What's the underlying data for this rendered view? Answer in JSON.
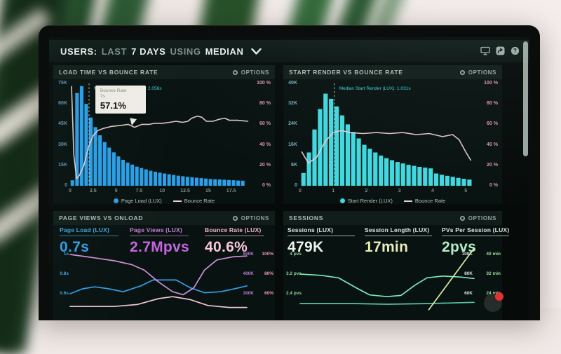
{
  "topbar": {
    "users": "USERS:",
    "last": "LAST",
    "days": "7 DAYS",
    "using": "USING",
    "median": "MEDIAN",
    "icons": [
      "display-icon",
      "share-icon",
      "help-icon"
    ]
  },
  "ui": {
    "options_label": "OPTIONS"
  },
  "colors": {
    "bar_blue": "#2b9fe8",
    "bar_cyan": "#41d8df",
    "bounce_line": "#e9d0d3",
    "median_label": "#41d6dd",
    "metric_purple": "#c467e0",
    "metric_pink": "#f8c6d8",
    "green_line": "#7fe9b9",
    "badge_red": "#e23333"
  },
  "chart_data": [
    {
      "type": "bar",
      "title": "LOAD TIME VS BOUNCE RATE",
      "x": {
        "min": 0,
        "max": 19.5,
        "ticks": [
          0,
          2.5,
          5,
          7.5,
          10,
          12.5,
          15,
          17.5
        ]
      },
      "y_left": {
        "min": 0,
        "max": 75000,
        "tick_labels": [
          "75K",
          "60K",
          "45K",
          "30K",
          "15K",
          "0"
        ],
        "color": "#6494b6"
      },
      "y_right": {
        "min": 0,
        "max": 100,
        "tick_labels": [
          "100 %",
          "80 %",
          "60 %",
          "40 %",
          "20 %",
          "0 %"
        ],
        "color": "#dc92ad"
      },
      "bars": {
        "name": "Page Load (LUX)",
        "color": "#2b9fe8",
        "start": 0.25,
        "step": 0.5,
        "values_k": [
          4,
          68,
          73,
          60,
          50,
          43,
          37,
          32,
          28,
          24.5,
          21.5,
          19,
          17,
          15.5,
          14,
          13,
          12,
          11,
          10.3,
          9.6,
          9,
          8.4,
          7.9,
          7.4,
          7,
          6.6,
          6.2,
          5.9,
          5.6,
          5.3,
          5,
          4.8,
          4.6,
          4.4,
          4.2,
          4,
          3.8,
          3.7
        ]
      },
      "line": {
        "name": "Bounce Rate",
        "color": "#e9d0d3",
        "points_pct": [
          [
            0.15,
            97
          ],
          [
            0.4,
            30
          ],
          [
            0.7,
            7
          ],
          [
            1,
            10
          ],
          [
            1.5,
            20
          ],
          [
            2,
            38
          ],
          [
            2.5,
            49
          ],
          [
            3,
            54
          ],
          [
            3.6,
            56
          ],
          [
            4.5,
            58
          ],
          [
            5.5,
            59
          ],
          [
            6.3,
            60
          ],
          [
            7,
            57.1
          ],
          [
            7.8,
            60
          ],
          [
            8.6,
            60
          ],
          [
            9.2,
            61
          ],
          [
            10,
            61
          ],
          [
            10.8,
            62
          ],
          [
            11.5,
            63
          ],
          [
            12.2,
            62
          ],
          [
            12.8,
            63
          ],
          [
            13.2,
            66
          ],
          [
            13.8,
            68
          ],
          [
            14.3,
            67
          ],
          [
            14.8,
            63
          ],
          [
            15.5,
            63
          ],
          [
            16.2,
            65
          ],
          [
            16.8,
            66
          ],
          [
            17.3,
            64
          ],
          [
            18.2,
            64
          ],
          [
            19.3,
            63
          ]
        ]
      },
      "median": {
        "x": 2.056,
        "label": "Median Page Load (LUX): 2.056s"
      },
      "tooltip": {
        "x": 7,
        "title": "Bounce Rate",
        "subtitle": "7s",
        "value": "57.1%"
      }
    },
    {
      "type": "bar",
      "title": "START RENDER VS BOUNCE RATE",
      "x": {
        "min": 0,
        "max": 5.25,
        "ticks": [
          0,
          1,
          2,
          3,
          4,
          5
        ]
      },
      "y_left": {
        "min": 0,
        "max": 40000,
        "tick_labels": [
          "40K",
          "32K",
          "24K",
          "16K",
          "8K",
          "0"
        ],
        "color": "#79aebc"
      },
      "y_right": {
        "min": 0,
        "max": 100,
        "tick_labels": [
          "100 %",
          "80 %",
          "60 %",
          "40 %",
          "20 %",
          "0 %"
        ],
        "color": "#dc92ad"
      },
      "bars": {
        "name": "Start Render (LUX)",
        "color": "#41d8df",
        "start": 0.1,
        "step": 0.167,
        "values_k": [
          5,
          13,
          22,
          30,
          36,
          34,
          31,
          27.5,
          24,
          21,
          18.5,
          16,
          14.5,
          13,
          11.8,
          10.8,
          10,
          9.3,
          8.7,
          8.2,
          7.8,
          7.4,
          7.1,
          6.8,
          4.8,
          4.3,
          3.9,
          3.5,
          3.1,
          2.7,
          2.4
        ]
      },
      "line": {
        "name": "Bounce Rate",
        "color": "#e9d0d3",
        "points_pct": [
          [
            0.05,
            33
          ],
          [
            0.25,
            22
          ],
          [
            0.5,
            28
          ],
          [
            0.75,
            43
          ],
          [
            1,
            52
          ],
          [
            1.25,
            54
          ],
          [
            1.5,
            52
          ],
          [
            1.9,
            51
          ],
          [
            2.3,
            52
          ],
          [
            2.7,
            51
          ],
          [
            3.1,
            52
          ],
          [
            3.5,
            50
          ],
          [
            3.9,
            51
          ],
          [
            4.3,
            48
          ],
          [
            4.6,
            50
          ],
          [
            4.8,
            45
          ],
          [
            5,
            33
          ],
          [
            5.15,
            25
          ]
        ]
      },
      "median": {
        "x": 1.031,
        "label": "Median Start Render (LUX): 1.031s"
      }
    },
    {
      "type": "line",
      "title": "PAGE VIEWS VS ONLOAD",
      "metrics": [
        {
          "label": "Page Load (LUX)",
          "value": "0.7s",
          "label_color": "#3fa6de",
          "color": "#2f9fe8"
        },
        {
          "label": "Page Views (LUX)",
          "value": "2.7Mpvs",
          "label_color": "#c77fd6",
          "color": "#c467e0"
        },
        {
          "label": "Bounce Rate (LUX)",
          "value": "40.6%",
          "label_color": "#f4b8cc",
          "color": "#f8c6d8"
        }
      ],
      "y_left": {
        "tick_labels": [
          "1s",
          "0.8s",
          "0.6s"
        ],
        "color": "#3fa6de"
      },
      "y_right": [
        {
          "labels": [
            "500K",
            "400K",
            "300K"
          ],
          "color": "#b87fd0"
        },
        {
          "labels": [
            "100%",
            "80%",
            "60%"
          ],
          "color": "#f098b8"
        }
      ],
      "series": [
        {
          "name": "Page Load (LUX)",
          "color": "#2f9fe8",
          "y_top_val": 1,
          "y_row_step": 0.2,
          "points": [
            [
              0,
              0.6
            ],
            [
              0.07,
              0.65
            ],
            [
              0.14,
              0.67
            ],
            [
              0.22,
              0.65
            ],
            [
              0.3,
              0.62
            ],
            [
              0.4,
              0.68
            ],
            [
              0.47,
              0.74
            ],
            [
              0.6,
              0.74
            ],
            [
              0.68,
              0.66
            ],
            [
              0.76,
              0.61
            ],
            [
              0.85,
              0.62
            ],
            [
              0.93,
              0.65
            ],
            [
              1,
              0.68
            ]
          ]
        },
        {
          "name": "Page Views (LUX)",
          "color": "#cf8fd8",
          "y_top_val": 500,
          "y_row_step": 100,
          "points": [
            [
              0,
              500
            ],
            [
              0.12,
              485
            ],
            [
              0.25,
              468
            ],
            [
              0.35,
              448
            ],
            [
              0.42,
              420
            ],
            [
              0.5,
              360
            ],
            [
              0.58,
              310
            ],
            [
              0.64,
              295
            ],
            [
              0.7,
              330
            ],
            [
              0.76,
              420
            ],
            [
              0.83,
              472
            ],
            [
              0.92,
              488
            ],
            [
              1,
              492
            ]
          ]
        },
        {
          "name": "Bounce Rate (LUX)",
          "color": "#f0c4ce",
          "y_top_val": 100,
          "y_row_step": 20,
          "points": [
            [
              0,
              47
            ],
            [
              0.25,
              47
            ],
            [
              0.38,
              49
            ],
            [
              0.5,
              55
            ],
            [
              0.58,
              57
            ],
            [
              0.68,
              54
            ],
            [
              0.78,
              48
            ],
            [
              0.9,
              46
            ],
            [
              1,
              46
            ]
          ]
        }
      ]
    },
    {
      "type": "line",
      "title": "SESSIONS",
      "metrics": [
        {
          "label": "Sessions (LUX)",
          "value": "479K",
          "label_color": "#dfe8e2",
          "color": "#eef2ee"
        },
        {
          "label": "Session Length (LUX)",
          "value": "17min",
          "label_color": "#dfe8e2",
          "color": "#e9eeb8"
        },
        {
          "label": "PVs Per Session (LUX)",
          "value": "2pvs",
          "label_color": "#dfe8e2",
          "color": "#b2efc8"
        }
      ],
      "y_left": {
        "tick_labels": [
          "4 pvs",
          "3.2 pvs",
          "2.4 pvs"
        ],
        "color": "#8fd89a"
      },
      "y_right": [
        {
          "labels": [
            "100K",
            "80K",
            "60K"
          ],
          "color": "#d7e4da"
        },
        {
          "labels": [
            "40 min",
            "32 min",
            "24 min"
          ],
          "color": "#9fdf9f"
        }
      ],
      "series": [
        {
          "name": "PVs Per Session (LUX)",
          "color": "#7fe9b9",
          "y_top_val": 4,
          "y_row_step": 0.8,
          "points": [
            [
              0,
              3.2
            ],
            [
              0.12,
              3.15
            ],
            [
              0.22,
              3.05
            ],
            [
              0.32,
              2.65
            ],
            [
              0.4,
              2.35
            ],
            [
              0.5,
              2.28
            ],
            [
              0.58,
              2.33
            ],
            [
              0.66,
              2.75
            ],
            [
              0.73,
              3.05
            ],
            [
              0.82,
              3.12
            ],
            [
              0.92,
              3.08
            ],
            [
              1,
              3.02
            ]
          ]
        },
        {
          "name": "Sessions (LUX)",
          "color": "#55c9a0",
          "y_top_val": 4,
          "y_row_step": 0.8,
          "points": [
            [
              0,
              2.0
            ],
            [
              0.3,
              2.0
            ],
            [
              0.5,
              1.97
            ],
            [
              0.75,
              2.0
            ],
            [
              1,
              2.05
            ]
          ]
        },
        {
          "name": "Session Length (LUX)",
          "color": "#dcebaa",
          "y_top_val": 4,
          "y_row_step": 0.8,
          "points": [
            [
              0.74,
              1.75
            ],
            [
              1,
              4.25
            ]
          ]
        }
      ],
      "badge": {
        "color": "#e23333"
      }
    }
  ]
}
